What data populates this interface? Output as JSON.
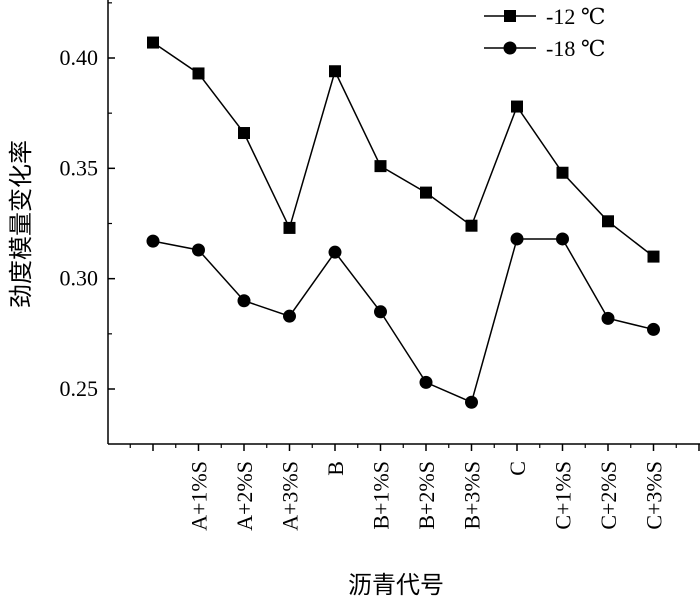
{
  "chart_data": {
    "type": "line",
    "xlabel": "沥青代号",
    "ylabel": "劲度模量变化率",
    "categories": [
      "",
      "A+1%S",
      "A+2%S",
      "A+3%S",
      "B",
      "B+1%S",
      "B+2%S",
      "B+3%S",
      "C",
      "C+1%S",
      "C+2%S",
      "C+3%S"
    ],
    "ylim": [
      0.23,
      0.45
    ],
    "yticks": [
      0.25,
      0.3,
      0.35,
      0.4
    ],
    "ytick_labels": [
      "0.25",
      "0.30",
      "0.35",
      "0.40"
    ],
    "grid": false,
    "legend_position": "top-right",
    "series": [
      {
        "name": "-12 ℃",
        "marker": "square",
        "color": "#000000",
        "values": [
          0.407,
          0.393,
          0.366,
          0.323,
          0.394,
          0.351,
          0.339,
          0.324,
          0.378,
          0.348,
          0.326,
          0.31
        ]
      },
      {
        "name": "-18 ℃",
        "marker": "circle",
        "color": "#000000",
        "values": [
          0.317,
          0.313,
          0.29,
          0.283,
          0.312,
          0.285,
          0.253,
          0.244,
          0.318,
          0.318,
          0.282,
          0.277
        ]
      }
    ]
  }
}
